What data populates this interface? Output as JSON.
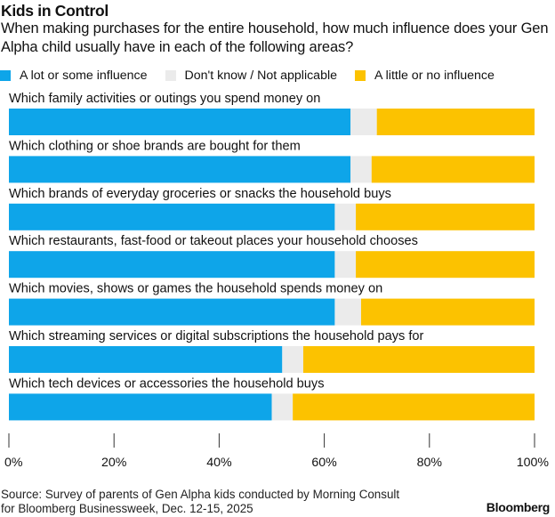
{
  "chart_data": {
    "type": "bar",
    "orientation": "horizontal",
    "stacked": true,
    "title": "Kids in Control",
    "subtitle": "When making purchases for the entire household, how much influence does your Gen Alpha child usually have in each of the following areas?",
    "categories": [
      "Which family activities or outings you spend money on",
      "Which clothing or shoe brands are bought for them",
      "Which brands of everyday groceries or snacks the household buys",
      "Which restaurants, fast-food or takeout places your household chooses",
      "Which movies, shows or games the household spends money on",
      "Which streaming services or digital subscriptions the household pays for",
      "Which tech devices or accessories the household buys"
    ],
    "series": [
      {
        "name": "A lot or some influence",
        "color": "#0ea5e9",
        "values": [
          65,
          65,
          62,
          62,
          62,
          52,
          50
        ]
      },
      {
        "name": "Don't know / Not applicable",
        "color": "#ebebeb",
        "values": [
          5,
          4,
          4,
          4,
          5,
          4,
          4
        ]
      },
      {
        "name": "A little or no influence",
        "color": "#fcc200",
        "values": [
          30,
          31,
          34,
          34,
          33,
          44,
          46
        ]
      }
    ],
    "xlim": [
      0,
      100
    ],
    "xticks": [
      "0%",
      "20%",
      "40%",
      "60%",
      "80%",
      "100%"
    ],
    "xlabel": "",
    "ylabel": "",
    "grid": false,
    "legend_position": "top-left",
    "source": "Source: Survey of parents of Gen Alpha kids conducted by Morning Consult for Bloomberg Businessweek, Dec. 12-15, 2025",
    "brand": "Bloomberg"
  },
  "source_lines": [
    "Source: Survey of parents of Gen Alpha kids conducted by Morning Consult",
    "for Bloomberg Businessweek, Dec. 12-15, 2025"
  ]
}
